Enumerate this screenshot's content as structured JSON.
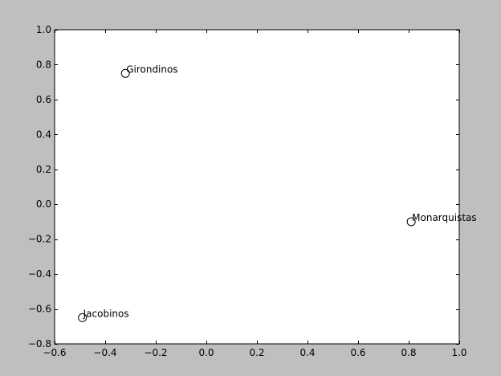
{
  "chart_data": {
    "type": "scatter",
    "title": "",
    "xlabel": "",
    "ylabel": "",
    "xlim": [
      -0.6,
      1.0
    ],
    "ylim": [
      -0.8,
      1.0
    ],
    "grid": false,
    "xticks": [
      -0.6,
      -0.4,
      -0.2,
      0.0,
      0.2,
      0.4,
      0.6,
      0.8,
      1.0
    ],
    "xtick_labels": [
      "−0.6",
      "−0.4",
      "−0.2",
      "0.0",
      "0.2",
      "0.4",
      "0.6",
      "0.8",
      "1.0"
    ],
    "yticks": [
      -0.8,
      -0.6,
      -0.4,
      -0.2,
      0.0,
      0.2,
      0.4,
      0.6,
      0.8,
      1.0
    ],
    "ytick_labels": [
      "−0.8",
      "−0.6",
      "−0.4",
      "−0.2",
      "0.0",
      "0.2",
      "0.4",
      "0.6",
      "0.8",
      "1.0"
    ],
    "points": [
      {
        "label": "Girondinos",
        "x": -0.32,
        "y": 0.75
      },
      {
        "label": "Monarquistas",
        "x": 0.81,
        "y": -0.1
      },
      {
        "label": "Jacobinos",
        "x": -0.49,
        "y": -0.65
      }
    ],
    "colors": {
      "figure_background": "#bfbfbf",
      "axes_background": "#ffffff",
      "marker_edge": "#000000",
      "marker_fill": "#ffffff"
    }
  }
}
